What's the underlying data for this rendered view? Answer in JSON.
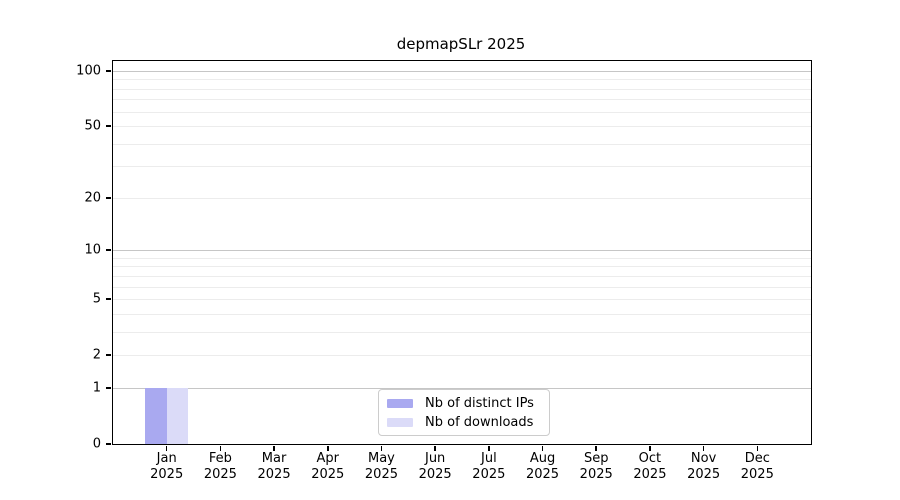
{
  "title": "depmapSLr 2025",
  "chart_data": {
    "type": "bar",
    "title": "depmapSLr 2025",
    "categories": [
      "Jan",
      "Feb",
      "Mar",
      "Apr",
      "May",
      "Jun",
      "Jul",
      "Aug",
      "Sep",
      "Oct",
      "Nov",
      "Dec"
    ],
    "x_tick_second_line": "2025",
    "series": [
      {
        "name": "Nb of distinct IPs",
        "color": "#a9a9f0",
        "values": [
          1,
          0,
          0,
          0,
          0,
          0,
          0,
          0,
          0,
          0,
          0,
          0
        ]
      },
      {
        "name": "Nb of downloads",
        "color": "#dbdbf8",
        "values": [
          1,
          0,
          0,
          0,
          0,
          0,
          0,
          0,
          0,
          0,
          0,
          0
        ]
      }
    ],
    "y_axis": {
      "scale": "log1p",
      "tick_values": [
        0,
        1,
        2,
        5,
        10,
        20,
        50,
        100
      ],
      "major_grid_values": [
        1,
        10,
        100
      ],
      "minor_grid_values": [
        2,
        3,
        4,
        5,
        6,
        7,
        8,
        9,
        20,
        30,
        40,
        50,
        60,
        70,
        80,
        90
      ],
      "ylim": [
        0,
        113
      ]
    },
    "grid": true,
    "legend": {
      "position": "lower center",
      "entries": [
        "Nb of distinct IPs",
        "Nb of downloads"
      ]
    },
    "colors": {
      "distinct_ips_bar": "#a9a9f0",
      "downloads_bar": "#dbdbf8",
      "major_gridline": "#c6c6c6",
      "minor_gridline": "#ececec",
      "axis": "#000000"
    }
  }
}
